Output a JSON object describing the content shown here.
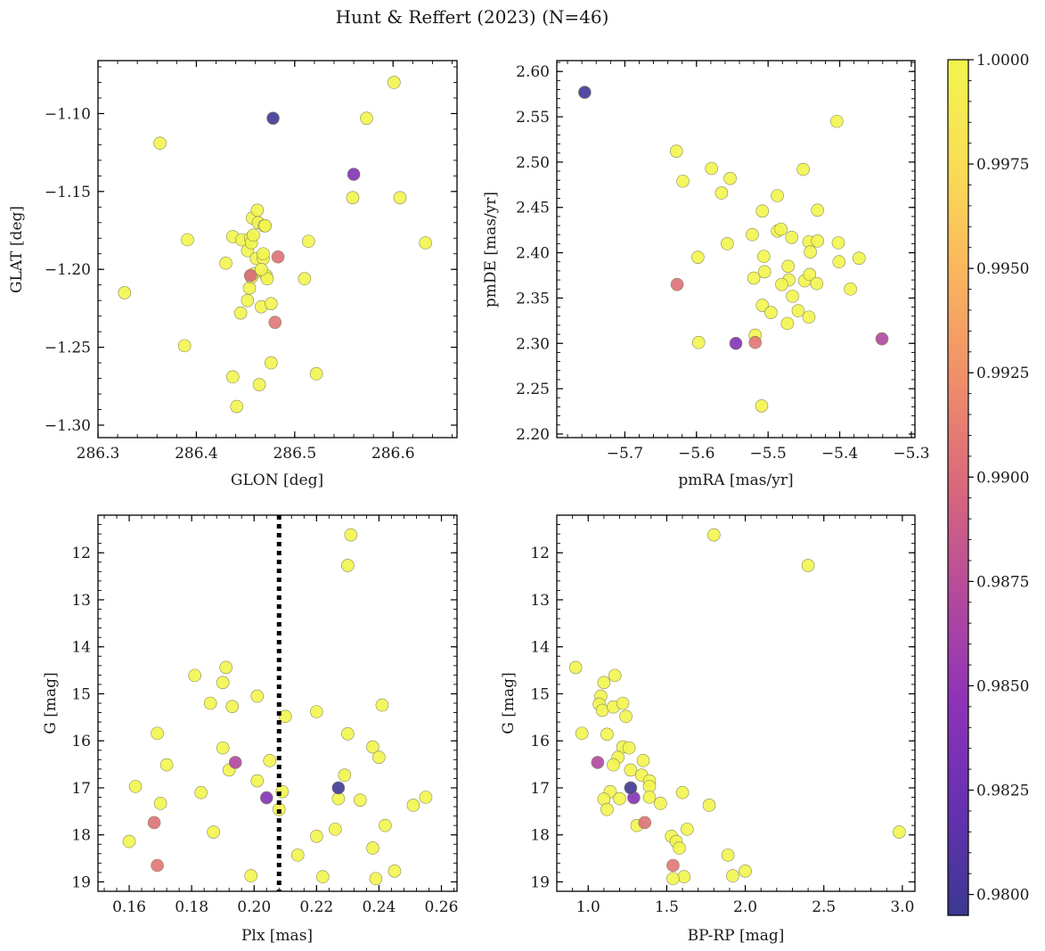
{
  "figure": {
    "title": "Hunt & Reffert (2023) (N=46)"
  },
  "colorbar": {
    "min": 0.9795,
    "max": 1.0,
    "ticks": [
      0.98,
      0.9825,
      0.985,
      0.9875,
      0.99,
      0.9925,
      0.995,
      0.9975,
      1.0
    ],
    "tick_labels": [
      "0.9800",
      "0.9825",
      "0.9850",
      "0.9875",
      "0.9900",
      "0.9925",
      "0.9950",
      "0.9975",
      "1.0000"
    ],
    "colors": {
      "c0": "#3b3891",
      "c1": "#6631b0",
      "c2": "#8e33b8",
      "c3": "#b44a9c",
      "c4": "#d8687c",
      "c5": "#ef8e6a",
      "c6": "#fab55e",
      "c7": "#f9dd55",
      "c8": "#f2f54e"
    }
  },
  "chart_data": [
    {
      "type": "scatter",
      "xlabel": "GLON [deg]",
      "ylabel": "GLAT [deg]",
      "xlim": [
        286.3,
        286.665
      ],
      "ylim": [
        -1.308,
        -1.066
      ],
      "xticks": [
        286.3,
        286.4,
        286.5,
        286.6
      ],
      "xtick_labels": [
        "286.3",
        "286.4",
        "286.5",
        "286.6"
      ],
      "yticks": [
        -1.1,
        -1.15,
        -1.2,
        -1.25,
        -1.3
      ],
      "ytick_labels": [
        "−1.10",
        "−1.15",
        "−1.20",
        "−1.25",
        "−1.30"
      ],
      "points": [
        [
          286.363,
          -1.119,
          1.0
        ],
        [
          286.601,
          -1.08,
          1.0
        ],
        [
          286.573,
          -1.103,
          1.0
        ],
        [
          286.327,
          -1.215,
          1.0
        ],
        [
          286.391,
          -1.181,
          1.0
        ],
        [
          286.388,
          -1.249,
          1.0
        ],
        [
          286.43,
          -1.196,
          1.0
        ],
        [
          286.437,
          -1.179,
          1.0
        ],
        [
          286.446,
          -1.181,
          1.0
        ],
        [
          286.445,
          -1.228,
          1.0
        ],
        [
          286.437,
          -1.269,
          1.0
        ],
        [
          286.441,
          -1.288,
          1.0
        ],
        [
          286.452,
          -1.188,
          1.0
        ],
        [
          286.455,
          -1.18,
          1.0
        ],
        [
          286.456,
          -1.183,
          1.0
        ],
        [
          286.457,
          -1.167,
          1.0
        ],
        [
          286.462,
          -1.162,
          1.0
        ],
        [
          286.463,
          -1.17,
          1.0
        ],
        [
          286.469,
          -1.172,
          1.0
        ],
        [
          286.461,
          -1.193,
          1.0
        ],
        [
          286.468,
          -1.193,
          1.0
        ],
        [
          286.458,
          -1.203,
          1.0
        ],
        [
          286.454,
          -1.212,
          1.0
        ],
        [
          286.456,
          -1.205,
          1.0
        ],
        [
          286.452,
          -1.22,
          1.0
        ],
        [
          286.466,
          -1.224,
          1.0
        ],
        [
          286.471,
          -1.204,
          1.0
        ],
        [
          286.472,
          -1.206,
          1.0
        ],
        [
          286.476,
          -1.222,
          1.0
        ],
        [
          286.476,
          -1.26,
          1.0
        ],
        [
          286.464,
          -1.274,
          1.0
        ],
        [
          286.51,
          -1.206,
          1.0
        ],
        [
          286.522,
          -1.267,
          1.0
        ],
        [
          286.514,
          -1.182,
          1.0
        ],
        [
          286.559,
          -1.154,
          1.0
        ],
        [
          286.607,
          -1.154,
          1.0
        ],
        [
          286.633,
          -1.183,
          1.0
        ],
        [
          286.458,
          -1.178,
          1.0
        ],
        [
          286.47,
          -1.172,
          1.0
        ],
        [
          286.466,
          -1.2,
          1.0
        ],
        [
          286.478,
          -1.103,
          0.9798
        ],
        [
          286.56,
          -1.139,
          0.9838
        ],
        [
          286.455,
          -1.204,
          0.9897
        ],
        [
          286.48,
          -1.234,
          0.9907
        ],
        [
          286.483,
          -1.192,
          0.9903
        ],
        [
          286.468,
          -1.19,
          1.0
        ]
      ]
    },
    {
      "type": "scatter",
      "xlabel": "pmRA [mas/yr]",
      "ylabel": "pmDE [mas/yr]",
      "xlim": [
        -5.795,
        -5.295
      ],
      "ylim": [
        2.196,
        2.612
      ],
      "xticks": [
        -5.7,
        -5.6,
        -5.5,
        -5.4,
        -5.3
      ],
      "xtick_labels": [
        "−5.7",
        "−5.6",
        "−5.5",
        "−5.4",
        "−5.3"
      ],
      "yticks": [
        2.2,
        2.25,
        2.3,
        2.35,
        2.4,
        2.45,
        2.5,
        2.55,
        2.6
      ],
      "ytick_labels": [
        "2.20",
        "2.25",
        "2.30",
        "2.35",
        "2.40",
        "2.45",
        "2.50",
        "2.55",
        "2.60"
      ],
      "points": [
        [
          -5.628,
          2.512,
          1.0
        ],
        [
          -5.619,
          2.479,
          1.0
        ],
        [
          -5.579,
          2.493,
          1.0
        ],
        [
          -5.553,
          2.482,
          1.0
        ],
        [
          -5.565,
          2.466,
          1.0
        ],
        [
          -5.557,
          2.41,
          1.0
        ],
        [
          -5.598,
          2.395,
          1.0
        ],
        [
          -5.597,
          2.301,
          1.0
        ],
        [
          -5.404,
          2.545,
          1.0
        ],
        [
          -5.451,
          2.492,
          1.0
        ],
        [
          -5.508,
          2.446,
          1.0
        ],
        [
          -5.487,
          2.463,
          1.0
        ],
        [
          -5.431,
          2.447,
          1.0
        ],
        [
          -5.522,
          2.42,
          1.0
        ],
        [
          -5.487,
          2.424,
          1.0
        ],
        [
          -5.482,
          2.426,
          1.0
        ],
        [
          -5.467,
          2.417,
          1.0
        ],
        [
          -5.443,
          2.412,
          1.0
        ],
        [
          -5.431,
          2.413,
          1.0
        ],
        [
          -5.402,
          2.411,
          1.0
        ],
        [
          -5.506,
          2.396,
          1.0
        ],
        [
          -5.505,
          2.379,
          1.0
        ],
        [
          -5.52,
          2.372,
          1.0
        ],
        [
          -5.472,
          2.385,
          1.0
        ],
        [
          -5.471,
          2.37,
          1.0
        ],
        [
          -5.481,
          2.365,
          1.0
        ],
        [
          -5.449,
          2.369,
          1.0
        ],
        [
          -5.442,
          2.376,
          1.0
        ],
        [
          -5.441,
          2.401,
          1.0
        ],
        [
          -5.401,
          2.39,
          1.0
        ],
        [
          -5.373,
          2.394,
          1.0
        ],
        [
          -5.432,
          2.366,
          1.0
        ],
        [
          -5.385,
          2.36,
          1.0
        ],
        [
          -5.466,
          2.352,
          1.0
        ],
        [
          -5.508,
          2.342,
          1.0
        ],
        [
          -5.496,
          2.334,
          1.0
        ],
        [
          -5.458,
          2.336,
          1.0
        ],
        [
          -5.443,
          2.329,
          1.0
        ],
        [
          -5.473,
          2.322,
          1.0
        ],
        [
          -5.518,
          2.309,
          1.0
        ],
        [
          -5.509,
          2.231,
          1.0
        ],
        [
          -5.756,
          2.577,
          0.9798
        ],
        [
          -5.545,
          2.3,
          0.9838
        ],
        [
          -5.341,
          2.305,
          0.9868
        ],
        [
          -5.627,
          2.365,
          0.9903
        ],
        [
          -5.518,
          2.301,
          0.9907
        ]
      ]
    },
    {
      "type": "scatter",
      "xlabel": "Plx [mas]",
      "ylabel": "G [mag]",
      "xlim": [
        0.15,
        0.265
      ],
      "ylim": [
        19.2,
        11.2
      ],
      "y_inverted": true,
      "xticks": [
        0.16,
        0.18,
        0.2,
        0.22,
        0.24,
        0.26
      ],
      "xtick_labels": [
        "0.16",
        "0.18",
        "0.20",
        "0.22",
        "0.24",
        "0.26"
      ],
      "yticks": [
        12,
        13,
        14,
        15,
        16,
        17,
        18,
        19
      ],
      "ytick_labels": [
        "12",
        "13",
        "14",
        "15",
        "16",
        "17",
        "18",
        "19"
      ],
      "vline": 0.208,
      "points": [
        [
          0.231,
          11.62,
          1.0
        ],
        [
          0.23,
          12.27,
          1.0
        ],
        [
          0.181,
          14.61,
          1.0
        ],
        [
          0.191,
          14.44,
          1.0
        ],
        [
          0.19,
          14.76,
          1.0
        ],
        [
          0.186,
          15.2,
          1.0
        ],
        [
          0.193,
          15.27,
          1.0
        ],
        [
          0.201,
          15.05,
          1.0
        ],
        [
          0.21,
          15.48,
          1.0
        ],
        [
          0.22,
          15.38,
          1.0
        ],
        [
          0.241,
          15.24,
          1.0
        ],
        [
          0.169,
          15.84,
          1.0
        ],
        [
          0.172,
          16.51,
          1.0
        ],
        [
          0.19,
          16.15,
          1.0
        ],
        [
          0.192,
          16.62,
          1.0
        ],
        [
          0.205,
          16.42,
          1.0
        ],
        [
          0.23,
          15.85,
          1.0
        ],
        [
          0.238,
          16.13,
          1.0
        ],
        [
          0.24,
          16.35,
          1.0
        ],
        [
          0.162,
          16.97,
          1.0
        ],
        [
          0.17,
          17.33,
          1.0
        ],
        [
          0.183,
          17.1,
          1.0
        ],
        [
          0.201,
          16.85,
          1.0
        ],
        [
          0.209,
          17.08,
          1.0
        ],
        [
          0.208,
          17.46,
          1.0
        ],
        [
          0.229,
          16.73,
          1.0
        ],
        [
          0.227,
          17.23,
          1.0
        ],
        [
          0.234,
          17.26,
          1.0
        ],
        [
          0.251,
          17.37,
          1.0
        ],
        [
          0.255,
          17.2,
          1.0
        ],
        [
          0.187,
          17.94,
          1.0
        ],
        [
          0.16,
          18.14,
          1.0
        ],
        [
          0.22,
          18.03,
          1.0
        ],
        [
          0.226,
          17.88,
          1.0
        ],
        [
          0.238,
          18.28,
          1.0
        ],
        [
          0.242,
          17.8,
          1.0
        ],
        [
          0.214,
          18.43,
          1.0
        ],
        [
          0.199,
          18.87,
          1.0
        ],
        [
          0.222,
          18.89,
          1.0
        ],
        [
          0.239,
          18.93,
          1.0
        ],
        [
          0.245,
          18.77,
          1.0
        ],
        [
          0.227,
          17.0,
          0.9798
        ],
        [
          0.204,
          17.21,
          0.9838
        ],
        [
          0.194,
          16.46,
          0.9868
        ],
        [
          0.168,
          17.74,
          0.9903
        ],
        [
          0.169,
          18.65,
          0.9907
        ]
      ]
    },
    {
      "type": "scatter",
      "xlabel": "BP-RP [mag]",
      "ylabel": "G [mag]",
      "xlim": [
        0.8,
        3.08
      ],
      "ylim": [
        19.2,
        11.2
      ],
      "y_inverted": true,
      "xticks": [
        1.0,
        1.5,
        2.0,
        2.5,
        3.0
      ],
      "xtick_labels": [
        "1.0",
        "1.5",
        "2.0",
        "2.5",
        "3.0"
      ],
      "yticks": [
        12,
        13,
        14,
        15,
        16,
        17,
        18,
        19
      ],
      "ytick_labels": [
        "12",
        "13",
        "14",
        "15",
        "16",
        "17",
        "18",
        "19"
      ],
      "points": [
        [
          1.8,
          11.62,
          1.0
        ],
        [
          2.4,
          12.27,
          1.0
        ],
        [
          0.92,
          14.44,
          1.0
        ],
        [
          1.17,
          14.61,
          1.0
        ],
        [
          1.1,
          14.76,
          1.0
        ],
        [
          1.08,
          15.05,
          1.0
        ],
        [
          1.07,
          15.22,
          1.0
        ],
        [
          1.09,
          15.35,
          1.0
        ],
        [
          1.16,
          15.28,
          1.0
        ],
        [
          1.22,
          15.2,
          1.0
        ],
        [
          1.24,
          15.48,
          1.0
        ],
        [
          0.96,
          15.84,
          1.0
        ],
        [
          1.12,
          15.86,
          1.0
        ],
        [
          1.22,
          16.13,
          1.0
        ],
        [
          1.26,
          16.15,
          1.0
        ],
        [
          1.19,
          16.35,
          1.0
        ],
        [
          1.16,
          16.51,
          1.0
        ],
        [
          1.35,
          16.42,
          1.0
        ],
        [
          1.27,
          16.62,
          1.0
        ],
        [
          1.34,
          16.73,
          1.0
        ],
        [
          1.39,
          16.85,
          1.0
        ],
        [
          1.39,
          16.97,
          1.0
        ],
        [
          1.14,
          17.08,
          1.0
        ],
        [
          1.1,
          17.24,
          1.0
        ],
        [
          1.2,
          17.23,
          1.0
        ],
        [
          1.39,
          17.2,
          1.0
        ],
        [
          1.6,
          17.1,
          1.0
        ],
        [
          1.12,
          17.46,
          1.0
        ],
        [
          1.46,
          17.33,
          1.0
        ],
        [
          1.77,
          17.37,
          1.0
        ],
        [
          1.31,
          17.8,
          1.0
        ],
        [
          1.63,
          17.88,
          1.0
        ],
        [
          1.53,
          18.03,
          1.0
        ],
        [
          1.56,
          18.14,
          1.0
        ],
        [
          1.58,
          18.28,
          1.0
        ],
        [
          1.89,
          18.43,
          1.0
        ],
        [
          2.0,
          18.77,
          1.0
        ],
        [
          1.92,
          18.87,
          1.0
        ],
        [
          1.61,
          18.89,
          1.0
        ],
        [
          1.54,
          18.93,
          1.0
        ],
        [
          2.98,
          17.94,
          1.0
        ],
        [
          1.27,
          17.0,
          0.9798
        ],
        [
          1.29,
          17.21,
          0.9838
        ],
        [
          1.06,
          16.46,
          0.9868
        ],
        [
          1.36,
          17.74,
          0.9903
        ],
        [
          1.54,
          18.65,
          0.9907
        ]
      ]
    }
  ]
}
